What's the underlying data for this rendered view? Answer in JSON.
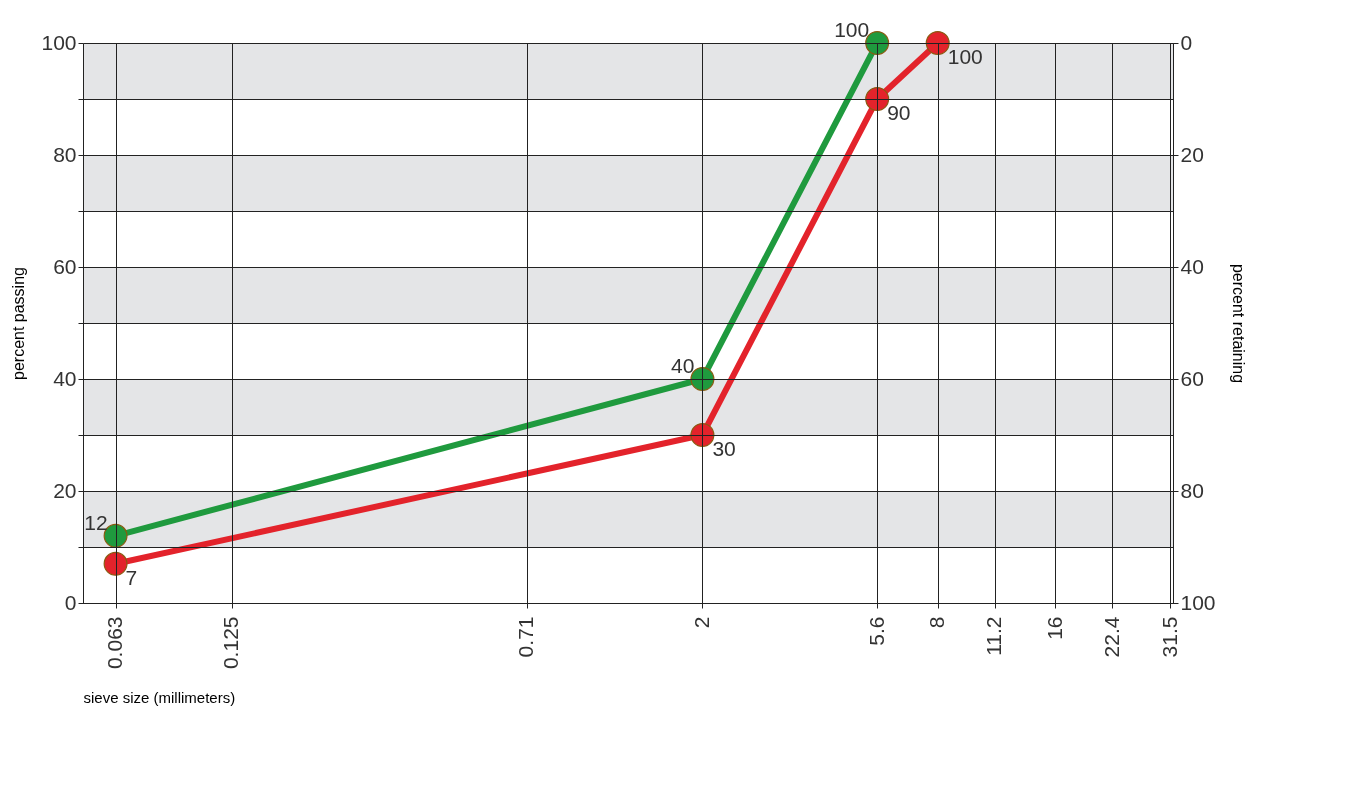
{
  "chart_data": {
    "type": "line",
    "xlabel": "sieve size (millimeters)",
    "ylabel": "percent passing",
    "y2label": "percent retaining",
    "log": "x",
    "xlim": [
      0.052,
      32
    ],
    "xticks": [
      0.063,
      0.125,
      0.71,
      2,
      5.6,
      8,
      11.2,
      16,
      22.4,
      31.5
    ],
    "ylim": [
      0,
      100
    ],
    "yticks": [
      0,
      {
        "value": 10,
        "label": null
      },
      20,
      {
        "value": 30,
        "label": null
      },
      40,
      {
        "value": 50,
        "label": null
      },
      60,
      {
        "value": 70,
        "label": null
      },
      80,
      {
        "value": 90,
        "label": null
      },
      100
    ],
    "y2lim": [
      100,
      0
    ],
    "y2ticks": [
      0,
      20,
      40,
      60,
      80,
      100
    ],
    "grid": true,
    "marker": "circle",
    "line_style": "solid",
    "data_labels": true,
    "bands": [
      {
        "axis": "y",
        "from": 10,
        "to": 20,
        "color": "#e4e5e7"
      },
      {
        "axis": "y",
        "from": 30,
        "to": 40,
        "color": "#e4e5e7"
      },
      {
        "axis": "y",
        "from": 50,
        "to": 60,
        "color": "#e4e5e7"
      },
      {
        "axis": "y",
        "from": 70,
        "to": 80,
        "color": "#e4e5e7"
      },
      {
        "axis": "y",
        "from": 90,
        "to": 100,
        "color": "#e4e5e7"
      }
    ],
    "series": [
      {
        "color": "#1f9a3e",
        "x": [
          0.063,
          2,
          5.6
        ],
        "values": [
          12,
          40,
          100
        ]
      },
      {
        "color": "#e3232b",
        "x": [
          0.063,
          2,
          5.6,
          8
        ],
        "values": [
          7,
          30,
          90,
          100
        ]
      }
    ]
  }
}
